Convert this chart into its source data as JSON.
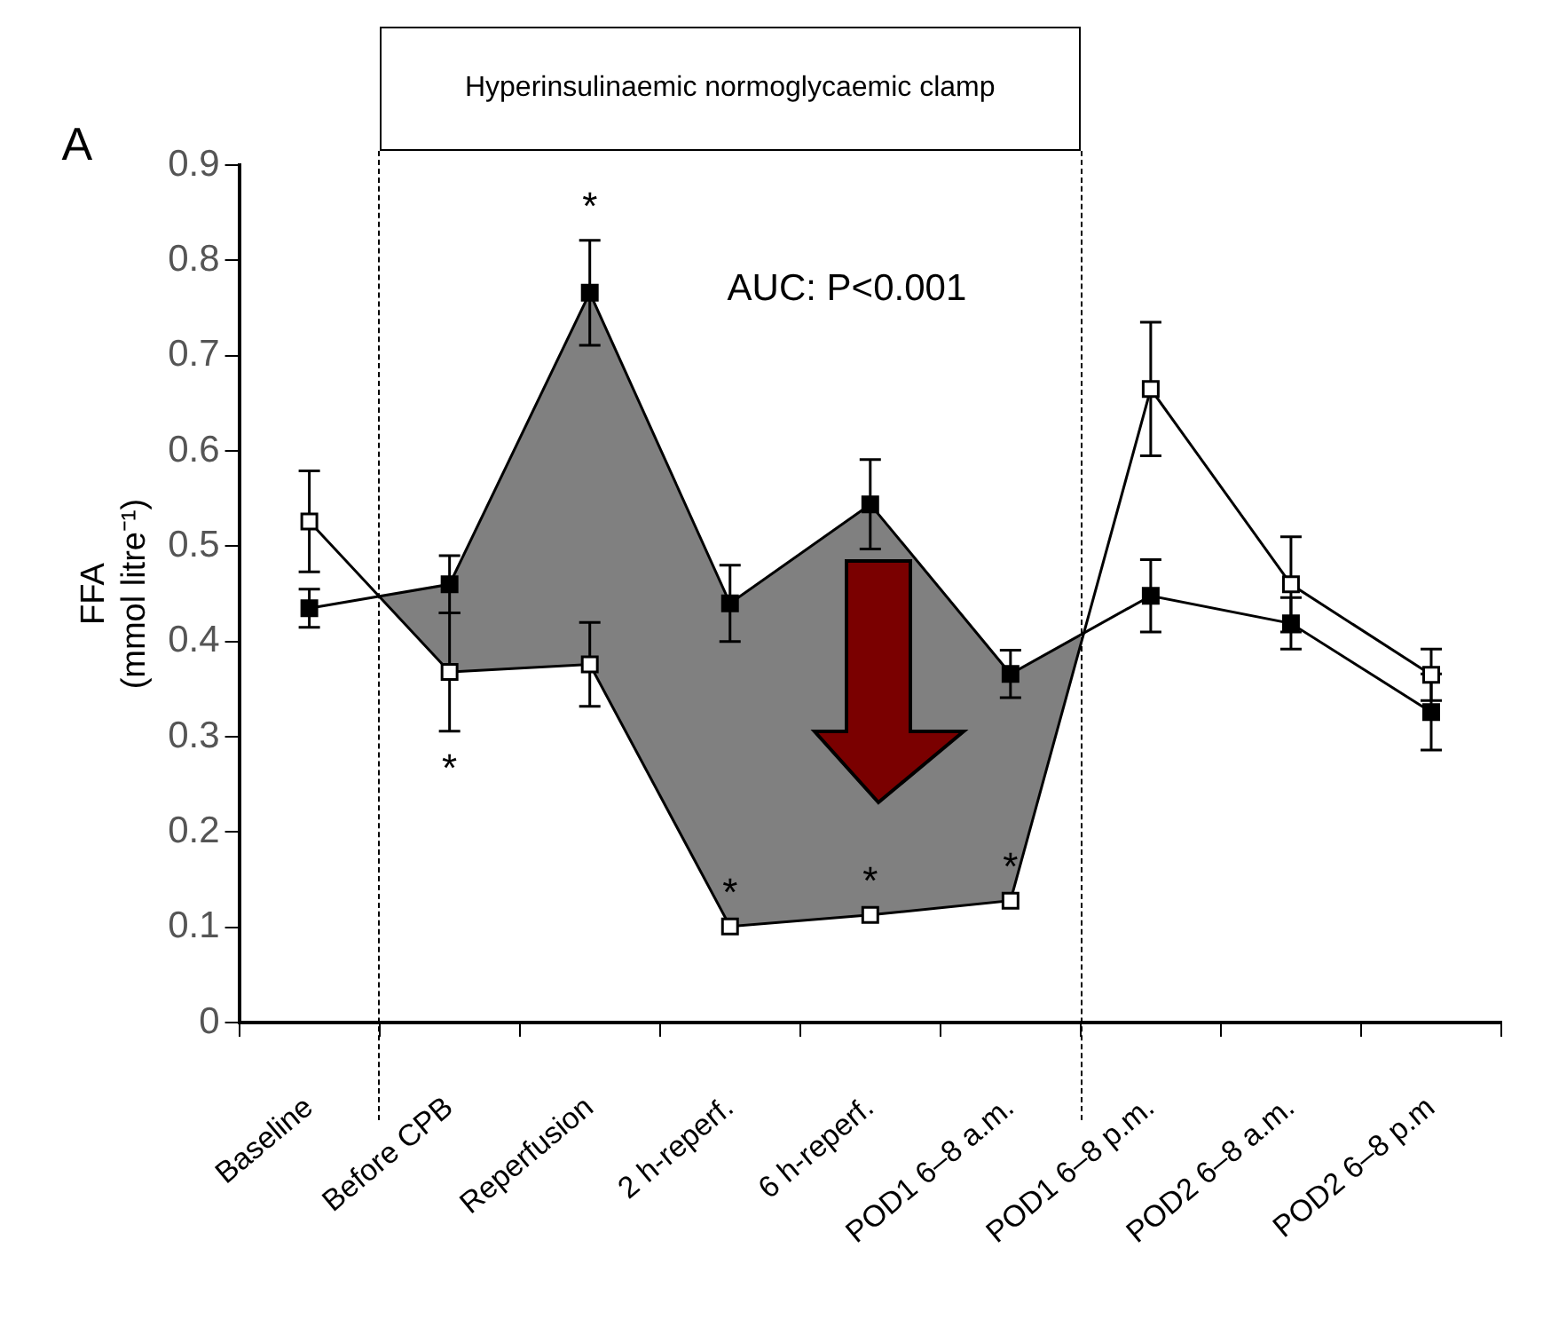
{
  "chart_data": {
    "type": "line",
    "ylabel": "FFA\n(mmol litre⁻¹)",
    "categories": [
      "Baseline",
      "Before CPB",
      "Reperfusion",
      "2 h-reperf.",
      "6 h-reperf.",
      "POD1 6–8 a.m.",
      "POD1 6–8 p.m.",
      "POD2 6–8 a.m.",
      "POD2 6–8 p.m"
    ],
    "series": [
      {
        "color": "#000000",
        "values": [
          0.435,
          0.46,
          0.766,
          0.44,
          0.544,
          0.366,
          0.448,
          0.419,
          0.326
        ],
        "errors": [
          0.02,
          0.03,
          0.055,
          0.04,
          0.047,
          0.025,
          0.038,
          0.027,
          0.04
        ],
        "lower": [
          0.526,
          0.368,
          0.376,
          0.101,
          0.113,
          0.128,
          0.665,
          null,
          null
        ],
        "upper": [
          0.435,
          0.46,
          0.766,
          0.44,
          0.544,
          0.366,
          0.448,
          null,
          null
        ]
      },
      {
        "color": "#ffffff",
        "values": [
          0.526,
          0.368,
          0.376,
          0.101,
          0.113,
          0.128,
          0.665,
          0.46,
          0.365
        ],
        "errors": [
          0.053,
          0.062,
          0.044,
          null,
          null,
          null,
          0.07,
          0.05,
          0.027
        ]
      }
    ],
    "ylim": [
      0,
      0.9
    ],
    "yticks": [
      0,
      0.1,
      0.2,
      0.3,
      0.4,
      0.5,
      0.6,
      0.7,
      0.8,
      0.9
    ],
    "annotations": [
      "A",
      "AUC: P<0.001",
      "Hyperinsulinaemic normoglycaemic clamp",
      {
        "text": "*",
        "x": "Before CPB",
        "y": 0.306
      },
      {
        "text": "*",
        "x": "Reperfusion",
        "y": 0.821
      },
      {
        "text": "*",
        "x": "2 h-reperf.",
        "y": 0.101
      },
      {
        "text": "*",
        "x": "6 h-reperf.",
        "y": 0.113
      },
      {
        "text": "*",
        "x": "POD1 6–8 a.m.",
        "y": 0.128
      }
    ],
    "marker": "square",
    "line_style": "solid",
    "grid": false,
    "legend": false
  }
}
